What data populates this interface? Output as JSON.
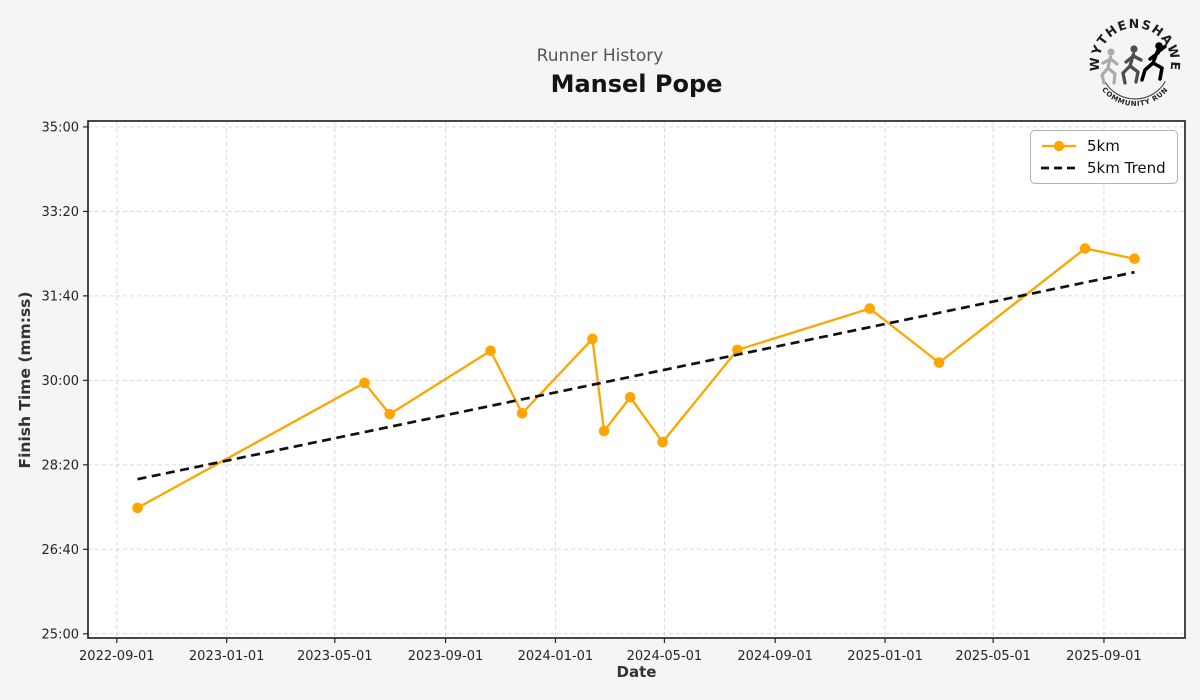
{
  "chart_data": {
    "type": "line",
    "title": "Mansel Pope",
    "subtitle": "Runner History",
    "xlabel": "Date",
    "ylabel": "Finish Time (mm:ss)",
    "grid": true,
    "legend_position": "upper right",
    "x_ticks": [
      "2022-09-01",
      "2023-01-01",
      "2023-05-01",
      "2023-09-01",
      "2024-01-01",
      "2024-05-01",
      "2024-09-01",
      "2025-01-01",
      "2025-05-01",
      "2025-09-01"
    ],
    "y_ticks": [
      "35:00",
      "33:20",
      "31:40",
      "30:00",
      "28:20",
      "26:40",
      "25:00"
    ],
    "xlim": [
      "2022-07-31",
      "2025-11-30"
    ],
    "ylim": [
      "24:55",
      "35:07"
    ],
    "series": [
      {
        "name": "5km",
        "color": "#FFA500",
        "points": [
          {
            "date": "2022-09-24",
            "time": "27:29"
          },
          {
            "date": "2023-06-03",
            "time": "29:57"
          },
          {
            "date": "2023-07-01",
            "time": "29:20"
          },
          {
            "date": "2023-10-21",
            "time": "30:35"
          },
          {
            "date": "2023-11-25",
            "time": "29:21"
          },
          {
            "date": "2024-02-11",
            "time": "30:49"
          },
          {
            "date": "2024-02-24",
            "time": "29:00"
          },
          {
            "date": "2024-03-24",
            "time": "29:40"
          },
          {
            "date": "2024-04-29",
            "time": "28:47"
          },
          {
            "date": "2024-07-21",
            "time": "30:36"
          },
          {
            "date": "2024-12-15",
            "time": "31:25"
          },
          {
            "date": "2025-03-02",
            "time": "30:21"
          },
          {
            "date": "2025-08-11",
            "time": "32:36"
          },
          {
            "date": "2025-10-05",
            "time": "32:24"
          }
        ]
      }
    ],
    "trend": {
      "name": "5km Trend",
      "color": "#111111",
      "style": "dashed",
      "start": {
        "date": "2022-09-24",
        "time": "28:03"
      },
      "end": {
        "date": "2025-10-05",
        "time": "32:08"
      }
    }
  },
  "logo": {
    "top_text": "WYTHENSHAWE",
    "bottom_text": "COMMUNITY RUN"
  },
  "colors": {
    "figure_background": "#f5f5f5",
    "plot_background": "#ffffff",
    "accent_orange": "#FFA500",
    "trend_black": "#111111"
  }
}
